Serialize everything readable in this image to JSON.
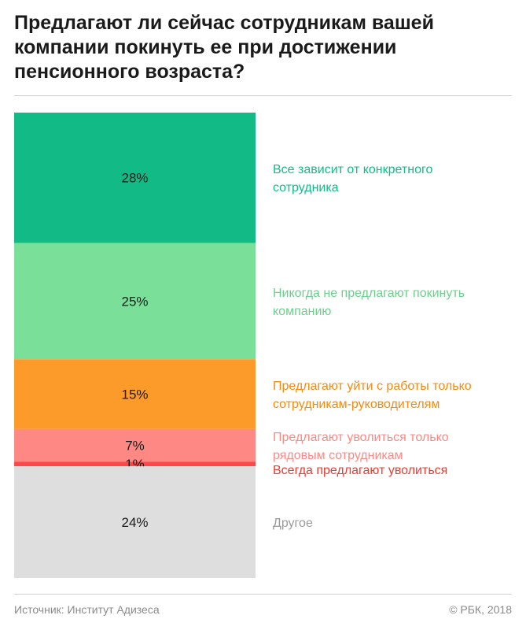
{
  "title": "Предлагают ли сейчас сотрудникам вашей компании покинуть ее при достижении пенсионного возраста?",
  "chart_data": {
    "type": "bar",
    "orientation": "stacked-vertical",
    "categories": [
      "Все зависит от конкретного сотрудника",
      "Никогда не предлагают покинуть компанию",
      "Предлагают уйти с работы только сотрудникам-руководителям",
      "Предлагают уволиться только рядовым сотрудникам",
      "Всегда предлагают уволиться",
      "Другое"
    ],
    "label_lines": [
      [
        "Все зависит от конкретного",
        "сотрудника"
      ],
      [
        "Никогда не предлагают покинуть",
        "компанию"
      ],
      [
        "Предлагают уйти с работы только",
        "сотрудникам-руководителям"
      ],
      [
        "Предлагают уволиться только",
        "рядовым сотрудникам"
      ],
      [
        "Всегда предлагают уволиться"
      ],
      [
        "Другое"
      ]
    ],
    "values": [
      28,
      25,
      15,
      7,
      1,
      24
    ],
    "value_labels": [
      "28%",
      "25%",
      "15%",
      "7%",
      "1%",
      "24%"
    ],
    "colors": [
      "#12bb86",
      "#7adf98",
      "#fc9a2a",
      "#fe8883",
      "#fe4747",
      "#dedede"
    ],
    "label_colors": [
      "#12bb86",
      "#6ccf8b",
      "#f58a0f",
      "#fe8883",
      "#f2392f",
      "#9a9a9a"
    ],
    "unit": "%"
  },
  "footer": {
    "source": "Источник: Институт Адизеса",
    "copyright": "© РБК, 2018"
  }
}
